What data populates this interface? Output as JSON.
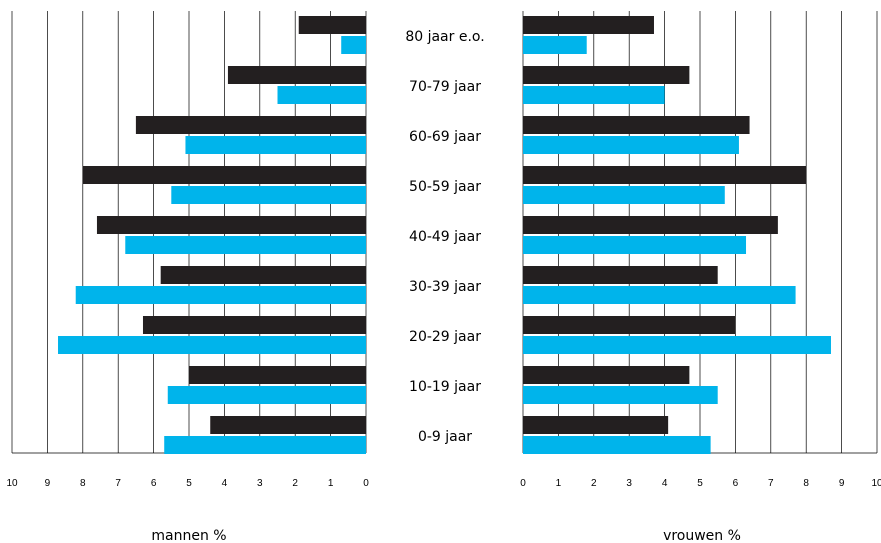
{
  "chart_data": {
    "type": "bar",
    "subtype": "population-pyramid",
    "categories": [
      "80 jaar e.o.",
      "70-79 jaar",
      "60-69 jaar",
      "50-59 jaar",
      "40-49 jaar",
      "30-39 jaar",
      "20-29 jaar",
      "10-19 jaar",
      "0-9 jaar"
    ],
    "left_panel": {
      "xlabel": "mannen %",
      "xlim": [
        10,
        0
      ],
      "ticks": [
        "10",
        "9",
        "8",
        "7",
        "6",
        "5",
        "4",
        "3",
        "2",
        "1",
        "0"
      ],
      "series": [
        {
          "color": "#231f20",
          "values": [
            1.9,
            3.9,
            6.5,
            8.0,
            7.6,
            5.8,
            6.3,
            5.0,
            4.4
          ]
        },
        {
          "color": "#00b4eb",
          "values": [
            0.7,
            2.5,
            5.1,
            5.5,
            6.8,
            8.2,
            8.7,
            5.6,
            5.7
          ]
        }
      ]
    },
    "right_panel": {
      "xlabel": "vrouwen %",
      "xlim": [
        0,
        10
      ],
      "ticks": [
        "0",
        "1",
        "2",
        "3",
        "4",
        "5",
        "6",
        "7",
        "8",
        "9",
        "10"
      ],
      "series": [
        {
          "color": "#231f20",
          "values": [
            3.7,
            4.7,
            6.4,
            8.0,
            7.2,
            5.5,
            6.0,
            4.7,
            4.1
          ]
        },
        {
          "color": "#00b4eb",
          "values": [
            1.8,
            4.0,
            6.1,
            5.7,
            6.3,
            7.7,
            8.7,
            5.5,
            5.3
          ]
        }
      ]
    },
    "grid": true
  }
}
